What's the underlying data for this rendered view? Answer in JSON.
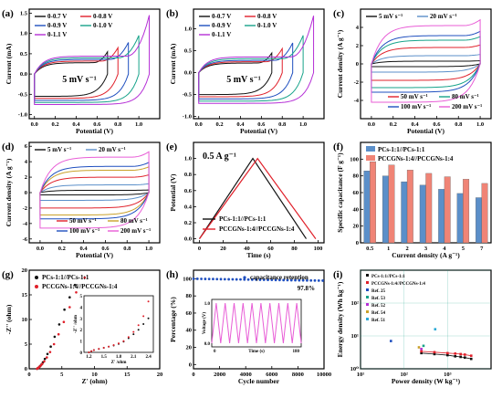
{
  "colors": {
    "black": "#111111",
    "red": "#e0202a",
    "blue": "#1f4fbf",
    "teal": "#17a38a",
    "violet": "#b52fd6",
    "cyan": "#2aa9d6",
    "olive": "#c9a12a",
    "steelblue": "#5b8fc9",
    "salmon": "#f08476",
    "pink": "#e85cd6"
  },
  "chart_data": [
    {
      "id": "a",
      "panel": "(a)",
      "type": "line",
      "xlabel": "Potential (V)",
      "ylabel": "Current (mA)",
      "xlim": [
        -0.05,
        1.2
      ],
      "ylim": [
        -1.1,
        1.6
      ],
      "xticks": [
        "0.0",
        "0.2",
        "0.4",
        "0.6",
        "0.8",
        "1.0"
      ],
      "yticks": [
        "-1.0",
        "-0.5",
        "0.0",
        "0.5",
        "1.0",
        "1.5"
      ],
      "annotation": "5 mV s⁻¹",
      "series": [
        {
          "name": "0-0.7 V",
          "vmax": 0.7,
          "upper": 0.28,
          "lower": -0.55,
          "tip": 0.55,
          "color": "black"
        },
        {
          "name": "0-0.8 V",
          "vmax": 0.8,
          "upper": 0.32,
          "lower": -0.6,
          "tip": 0.65,
          "color": "red"
        },
        {
          "name": "0-0.9 V",
          "vmax": 0.9,
          "upper": 0.36,
          "lower": -0.65,
          "tip": 0.78,
          "color": "blue"
        },
        {
          "name": "0-1.0 V",
          "vmax": 1.0,
          "upper": 0.4,
          "lower": -0.7,
          "tip": 0.95,
          "color": "teal"
        },
        {
          "name": "0-1.1 V",
          "vmax": 1.1,
          "upper": 0.44,
          "lower": -0.75,
          "tip": 1.45,
          "color": "violet"
        }
      ],
      "legend_cols": 2
    },
    {
      "id": "b",
      "panel": "(b)",
      "type": "line",
      "xlabel": "Potential (V)",
      "ylabel": "Current (mA)",
      "xlim": [
        -0.05,
        1.2
      ],
      "ylim": [
        -1.05,
        1.45
      ],
      "xticks": [
        "0.0",
        "0.2",
        "0.4",
        "0.6",
        "0.8",
        "1.0"
      ],
      "yticks": [
        "-1.0",
        "-0.5",
        "0.0",
        "0.5",
        "1.0"
      ],
      "annotation": "5 mV s⁻¹",
      "series": [
        {
          "name": "0-0.7 V",
          "vmax": 0.7,
          "upper": 0.22,
          "lower": -0.5,
          "tip": 0.45,
          "color": "black"
        },
        {
          "name": "0-0.8 V",
          "vmax": 0.8,
          "upper": 0.25,
          "lower": -0.55,
          "tip": 0.55,
          "color": "red"
        },
        {
          "name": "0-0.9 V",
          "vmax": 0.9,
          "upper": 0.28,
          "lower": -0.6,
          "tip": 0.68,
          "color": "blue"
        },
        {
          "name": "0-1.0 V",
          "vmax": 1.0,
          "upper": 0.32,
          "lower": -0.65,
          "tip": 0.85,
          "color": "teal"
        },
        {
          "name": "0-1.1 V",
          "vmax": 1.1,
          "upper": 0.36,
          "lower": -0.7,
          "tip": 1.3,
          "color": "violet"
        }
      ],
      "legend_cols": 2
    },
    {
      "id": "c",
      "panel": "(c)",
      "type": "line",
      "xlabel": "Potential (V)",
      "ylabel": "Current density (A g⁻¹)",
      "xlim": [
        -0.1,
        1.1
      ],
      "ylim": [
        -6,
        6
      ],
      "xticks": [
        "0.0",
        "0.2",
        "0.4",
        "0.6",
        "0.8",
        "1.0"
      ],
      "yticks": [
        "-4",
        "-2",
        "0",
        "2",
        "4"
      ],
      "series": [
        {
          "name": "5 mV s⁻¹",
          "h": 0.3,
          "color": "black"
        },
        {
          "name": "20 mV s⁻¹",
          "h": 0.9,
          "color": "steelblue"
        },
        {
          "name": "50 mV s⁻¹",
          "h": 1.8,
          "color": "red"
        },
        {
          "name": "80 mV s⁻¹",
          "h": 2.6,
          "color": "teal"
        },
        {
          "name": "100 mV s⁻¹",
          "h": 3.1,
          "color": "blue"
        },
        {
          "name": "200 mV s⁻¹",
          "h": 4.2,
          "color": "pink"
        }
      ]
    },
    {
      "id": "d",
      "panel": "(d)",
      "type": "line",
      "xlabel": "Potential (V)",
      "ylabel": "Current density (A g⁻¹)",
      "xlim": [
        -0.1,
        1.1
      ],
      "ylim": [
        -6.5,
        6.5
      ],
      "xticks": [
        "0.0",
        "0.2",
        "0.4",
        "0.6",
        "0.8",
        "1.0"
      ],
      "yticks": [
        "-6",
        "-4",
        "-2",
        "0",
        "2",
        "4",
        "6"
      ],
      "series": [
        {
          "name": "5 mV s⁻¹",
          "h": 0.3,
          "color": "black"
        },
        {
          "name": "20 mV s⁻¹",
          "h": 1.0,
          "color": "steelblue"
        },
        {
          "name": "50 mV s⁻¹",
          "h": 2.0,
          "color": "red"
        },
        {
          "name": "80 mV s⁻¹",
          "h": 2.9,
          "color": "olive"
        },
        {
          "name": "100 mV s⁻¹",
          "h": 3.4,
          "color": "blue"
        },
        {
          "name": "200 mV s⁻¹",
          "h": 4.6,
          "color": "pink"
        }
      ]
    },
    {
      "id": "e",
      "panel": "(e)",
      "type": "line",
      "xlabel": "Time (s)",
      "ylabel": "Potential (V)",
      "xlim": [
        -5,
        105
      ],
      "ylim": [
        -0.05,
        1.2
      ],
      "xticks": [
        "0",
        "20",
        "40",
        "60",
        "80",
        "100"
      ],
      "yticks": [
        "0.0",
        "0.2",
        "0.4",
        "0.6",
        "0.8",
        "1.0"
      ],
      "annotation": "0.5 A g⁻¹",
      "series": [
        {
          "name": "PCs-1:1//PCs-1:1",
          "x": [
            0,
            45,
            90
          ],
          "y": [
            0,
            1.0,
            0
          ],
          "color": "black"
        },
        {
          "name": "PCCGNs-1:4//PCCGNs-1:4",
          "x": [
            0,
            49,
            98
          ],
          "y": [
            0,
            1.0,
            0
          ],
          "color": "red"
        }
      ]
    },
    {
      "id": "f",
      "panel": "(f)",
      "type": "bar",
      "xlabel": "Current density (A g⁻¹)",
      "ylabel": "Specific capacitance (F g⁻¹)",
      "categories": [
        "0.5",
        "1",
        "2",
        "3",
        "4",
        "5",
        "7"
      ],
      "ylim": [
        0,
        120
      ],
      "yticks": [
        "0",
        "20",
        "40",
        "60",
        "80",
        "100"
      ],
      "series": [
        {
          "name": "PCs-1:1//PCs-1:1",
          "values": [
            86,
            80,
            73,
            69,
            64,
            59,
            54
          ],
          "color": "steelblue"
        },
        {
          "name": "PCCGNs-1:4//PCCGNs-1:4",
          "values": [
            97,
            93,
            87,
            83,
            79,
            76,
            71
          ],
          "color": "salmon"
        }
      ]
    },
    {
      "id": "g",
      "panel": "(g)",
      "type": "scatter",
      "xlabel": "Z' (ohm)",
      "ylabel": "-Z'' (ohm)",
      "xlim": [
        0,
        20
      ],
      "ylim": [
        0,
        20
      ],
      "xticks": [
        "0",
        "5",
        "10",
        "15",
        "20"
      ],
      "yticks": [
        "0",
        "5",
        "10",
        "15",
        "20"
      ],
      "series": [
        {
          "name": "PCs-1:1//PCs-1:1",
          "color": "black",
          "x": [
            1.2,
            1.3,
            1.4,
            1.5,
            1.6,
            1.7,
            1.9,
            2.1,
            2.4,
            2.8,
            3.3,
            3.9,
            4.6,
            5.4,
            6.2,
            7.0
          ],
          "y": [
            0,
            0.1,
            0.2,
            0.3,
            0.45,
            0.6,
            0.9,
            1.3,
            2.0,
            3.0,
            4.5,
            6.5,
            9.0,
            12.0,
            14.5,
            17.0
          ]
        },
        {
          "name": "PCCGNs-1:4//PCCGNs-1:4",
          "color": "red",
          "x": [
            1.2,
            1.3,
            1.4,
            1.5,
            1.6,
            1.8,
            2.0,
            2.3,
            2.7,
            3.2,
            3.8,
            4.5,
            5.3,
            6.2,
            7.2,
            8.5
          ],
          "y": [
            0,
            0.1,
            0.2,
            0.3,
            0.45,
            0.7,
            1.0,
            1.5,
            2.3,
            3.4,
            5.0,
            7.0,
            9.5,
            12.5,
            15.5,
            18.5
          ]
        }
      ],
      "inset": {
        "xlabel": "Z' /ohm",
        "ylabel": "-Z'' /ohm",
        "xlim": [
          1.1,
          2.5
        ],
        "ylim": [
          0,
          5
        ],
        "xticks": [
          "1.2",
          "1.5",
          "1.8",
          "2.1",
          "2.4"
        ],
        "yticks": [
          "0",
          "1",
          "2",
          "3",
          "4",
          "5"
        ],
        "series": [
          {
            "color": "black",
            "x": [
              1.2,
              1.25,
              1.3,
              1.4,
              1.5,
              1.6,
              1.7,
              1.8,
              1.9,
              2.0,
              2.1,
              2.2,
              2.3,
              2.4
            ],
            "y": [
              0,
              0.1,
              0.2,
              0.3,
              0.4,
              0.5,
              0.6,
              0.75,
              0.95,
              1.25,
              1.6,
              2.0,
              2.5,
              3.0
            ]
          },
          {
            "color": "red",
            "x": [
              1.2,
              1.25,
              1.3,
              1.4,
              1.5,
              1.6,
              1.7,
              1.8,
              1.9,
              2.0,
              2.1,
              2.2,
              2.3,
              2.4
            ],
            "y": [
              0,
              0.1,
              0.2,
              0.3,
              0.4,
              0.5,
              0.65,
              0.8,
              1.0,
              1.35,
              1.8,
              2.4,
              3.2,
              4.5
            ]
          }
        ]
      }
    },
    {
      "id": "h",
      "panel": "(h)",
      "type": "scatter",
      "xlabel": "Cycle number",
      "ylabel": "Percentage (%)",
      "xlim": [
        0,
        10000
      ],
      "ylim": [
        -5,
        110
      ],
      "xticks": [
        "0",
        "2000",
        "4000",
        "6000",
        "8000",
        "10000"
      ],
      "yticks": [
        "0",
        "20",
        "40",
        "60",
        "80",
        "100"
      ],
      "legend": "capacitance retention",
      "retention": [
        100,
        97.8
      ],
      "retention_label": "97.8%",
      "inset": {
        "xlabel": "Time (s)",
        "ylabel": "Voltage (V)",
        "xticks": [
          "0",
          "180"
        ],
        "yticks": [
          "0.0",
          "1.0"
        ],
        "cycles": 10
      }
    },
    {
      "id": "i",
      "panel": "(i)",
      "type": "scatter",
      "xlabel": "Power density (W kg⁻¹)",
      "ylabel": "Energy density (Wh kg⁻¹)",
      "xlog": true,
      "ylog": true,
      "xlim": [
        10,
        10000
      ],
      "ylim": [
        1,
        1000
      ],
      "xticks": [
        "10¹",
        "10²",
        "10³"
      ],
      "yticks": [
        "10⁰",
        "10¹",
        "10²"
      ],
      "series": [
        {
          "name": "PCs-1:1//PCs-1:1",
          "color": "black",
          "x": [
            250,
            500,
            1000,
            1500,
            2000,
            2500,
            3500
          ],
          "y": [
            3.0,
            2.8,
            2.6,
            2.4,
            2.3,
            2.2,
            2.0
          ]
        },
        {
          "name": "PCCGNs-1:4//PCCGNs-1:4",
          "color": "red",
          "x": [
            250,
            500,
            1000,
            1500,
            2000,
            2500,
            3500
          ],
          "y": [
            3.4,
            3.2,
            3.0,
            2.9,
            2.8,
            2.7,
            2.5
          ]
        },
        {
          "name": "Ref. 25",
          "color": "blue",
          "x": [
            50
          ],
          "y": [
            7
          ]
        },
        {
          "name": "Ref. 53",
          "color": "teal",
          "x": [
            280
          ],
          "y": [
            5
          ]
        },
        {
          "name": "Ref. 52",
          "color": "violet",
          "x": [
            250
          ],
          "y": [
            4
          ]
        },
        {
          "name": "Ref. 54",
          "color": "olive",
          "x": [
            220
          ],
          "y": [
            4.5
          ]
        },
        {
          "name": "Ref. 51",
          "color": "cyan",
          "x": [
            520
          ],
          "y": [
            16
          ]
        }
      ]
    }
  ]
}
